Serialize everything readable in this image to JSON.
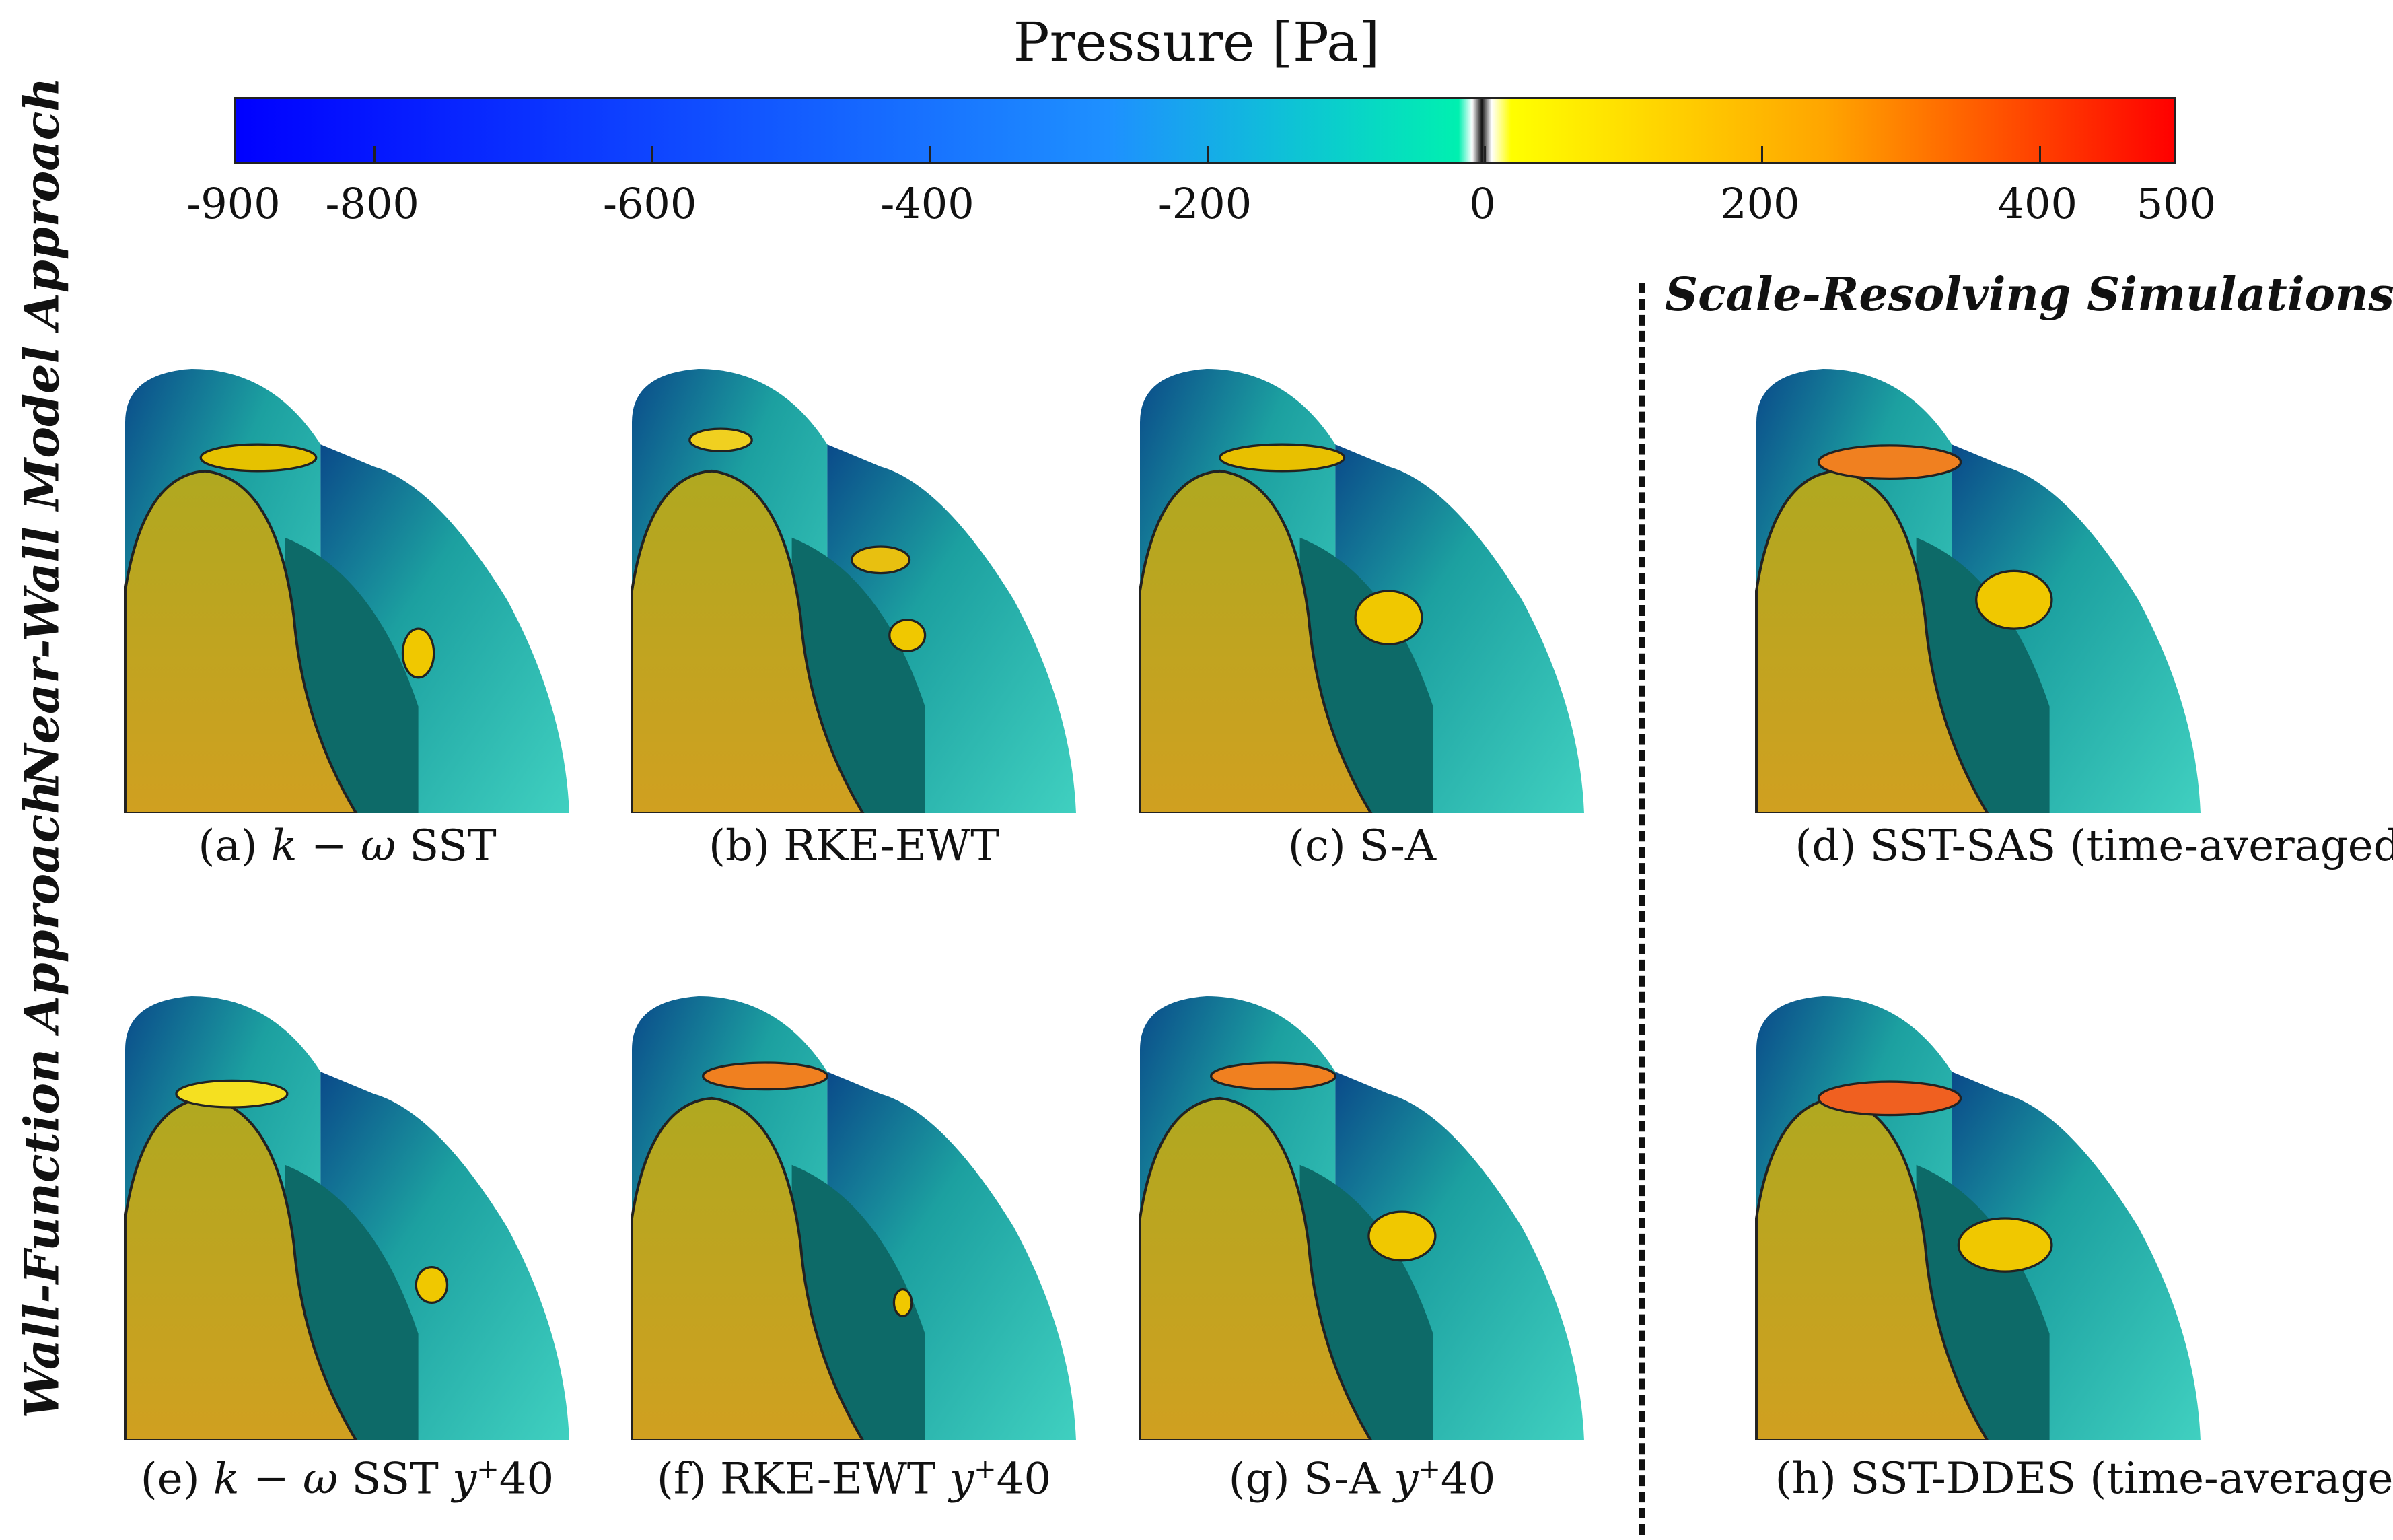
{
  "colorbar": {
    "title": "Pressure [Pa]",
    "min": -900,
    "max": 500,
    "colors": {
      "low": "#0000ff",
      "mid_low": "#1e90ff",
      "zero_neg": "#00f0b0",
      "zero": "#111111",
      "zero_pos": "#ffff00",
      "mid_high": "#ffa500",
      "high": "#ff0000"
    },
    "ticks": [
      {
        "value": -900,
        "label": "-900"
      },
      {
        "value": -800,
        "label": "-800"
      },
      {
        "value": -600,
        "label": "-600"
      },
      {
        "value": -400,
        "label": "-400"
      },
      {
        "value": -200,
        "label": "-200"
      },
      {
        "value": 0,
        "label": "0"
      },
      {
        "value": 200,
        "label": "200"
      },
      {
        "value": 400,
        "label": "400"
      },
      {
        "value": 500,
        "label": "500"
      }
    ]
  },
  "rows": {
    "top_label": "Near-Wall Model Approach",
    "bottom_label": "Wall-Function Approach"
  },
  "scale_resolving_label": "Scale-Resolving Simulations",
  "panels": [
    {
      "id": "a",
      "prefix": "(a) ",
      "math": "k − ω",
      "suffix": " SST",
      "sup": ""
    },
    {
      "id": "b",
      "prefix": "(b) ",
      "math": "",
      "suffix": "RKE-EWT",
      "sup": ""
    },
    {
      "id": "c",
      "prefix": "(c) ",
      "math": "",
      "suffix": "S-A",
      "sup": ""
    },
    {
      "id": "d",
      "prefix": "(d) ",
      "math": "",
      "suffix": "SST-SAS (time-averaged)",
      "sup": ""
    },
    {
      "id": "e",
      "prefix": "(e) ",
      "math": "k − ω",
      "suffix": " SST ",
      "ymath": "y",
      "sup": "+",
      "tail": "40"
    },
    {
      "id": "f",
      "prefix": "(f) ",
      "math": "",
      "suffix": "RKE-EWT ",
      "ymath": "y",
      "sup": "+",
      "tail": "40"
    },
    {
      "id": "g",
      "prefix": "(g) ",
      "math": "",
      "suffix": "S-A ",
      "ymath": "y",
      "sup": "+",
      "tail": "40"
    },
    {
      "id": "h",
      "prefix": "(h) ",
      "math": "",
      "suffix": "SST-DDES (time-averaged)",
      "sup": ""
    }
  ]
}
